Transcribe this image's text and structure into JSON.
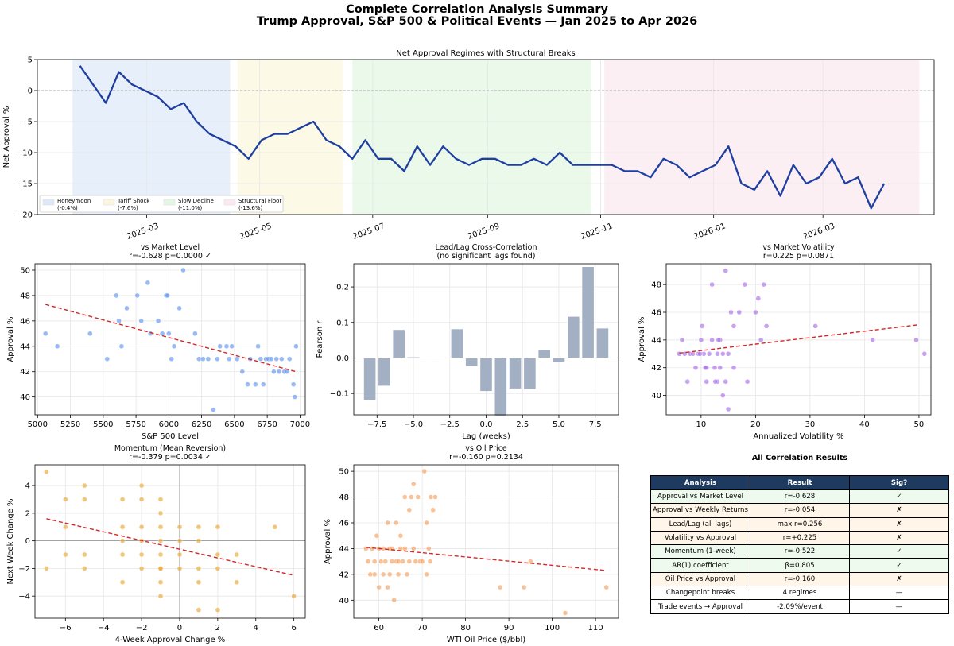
{
  "suptitle_line1": "Complete Correlation Analysis Summary",
  "suptitle_line2": "Trump Approval, S&P 500 & Political Events — Jan 2025 to Apr 2026",
  "chart_data": [
    {
      "type": "line",
      "title": "Net Approval Regimes with Structural Breaks",
      "ylabel": "Net Approval %",
      "xlabel": "",
      "xlim": [
        "2025-01-01",
        "2026-04-30"
      ],
      "ylim": [
        -20,
        5
      ],
      "yticks": [
        5,
        0,
        -5,
        -10,
        -15,
        -20
      ],
      "xticks": [
        "2025-03",
        "2025-05",
        "2025-07",
        "2025-09",
        "2025-11",
        "2026-01",
        "2026-03"
      ],
      "grid": true,
      "reference_line_y": 0,
      "regimes": [
        {
          "label": "Honeymoon",
          "mean_label": "(-0.4%)",
          "start": "2025-01-20",
          "end": "2025-04-15",
          "color": "#dde8fa"
        },
        {
          "label": "Tariff Shock",
          "mean_label": "(-7.6%)",
          "start": "2025-04-19",
          "end": "2025-06-15",
          "color": "#fbf6dd"
        },
        {
          "label": "Slow Decline",
          "mean_label": "(-11.0%)",
          "start": "2025-06-20",
          "end": "2025-10-27",
          "color": "#e3f7e3"
        },
        {
          "label": "Structural Floor",
          "mean_label": "(-13.6%)",
          "start": "2025-11-03",
          "end": "2026-04-22",
          "color": "#fbe8f0"
        }
      ],
      "legend_position": "lower-left",
      "series": [
        {
          "color": "#1f3fa0",
          "x": [
            "2025-01-24",
            "2025-01-31",
            "2025-02-07",
            "2025-02-14",
            "2025-02-21",
            "2025-02-28",
            "2025-03-07",
            "2025-03-14",
            "2025-03-21",
            "2025-03-28",
            "2025-04-04",
            "2025-04-11",
            "2025-04-18",
            "2025-04-25",
            "2025-05-02",
            "2025-05-09",
            "2025-05-16",
            "2025-05-23",
            "2025-05-30",
            "2025-06-06",
            "2025-06-13",
            "2025-06-20",
            "2025-06-27",
            "2025-07-04",
            "2025-07-11",
            "2025-07-18",
            "2025-07-25",
            "2025-08-01",
            "2025-08-08",
            "2025-08-15",
            "2025-08-22",
            "2025-08-29",
            "2025-09-05",
            "2025-09-12",
            "2025-09-19",
            "2025-09-26",
            "2025-10-03",
            "2025-10-10",
            "2025-10-17",
            "2025-10-24",
            "2025-10-31",
            "2025-11-07",
            "2025-11-14",
            "2025-11-21",
            "2025-11-28",
            "2025-12-05",
            "2025-12-12",
            "2025-12-19",
            "2025-12-26",
            "2026-01-02",
            "2026-01-09",
            "2026-01-16",
            "2026-01-23",
            "2026-01-30",
            "2026-02-06",
            "2026-02-13",
            "2026-02-20",
            "2026-02-27",
            "2026-03-06",
            "2026-03-13",
            "2026-03-20",
            "2026-03-27",
            "2026-04-03",
            "2026-04-10",
            "2026-04-17"
          ],
          "y": [
            4,
            1,
            -2,
            3,
            1,
            0,
            -1,
            -3,
            -2,
            -5,
            -7,
            -8,
            -9,
            -11,
            -8,
            -7,
            -7,
            -6,
            -5,
            -8,
            -9,
            -11,
            -8,
            -11,
            -11,
            -13,
            -9,
            -12,
            -9,
            -11,
            -12,
            -11,
            -11,
            -12,
            -12,
            -11,
            -12,
            -10,
            -12,
            -12,
            -12,
            -12,
            -13,
            -13,
            -14,
            -11,
            -12,
            -14,
            -13,
            -12,
            -9,
            -15,
            -16,
            -13,
            -17,
            -12,
            -15,
            -14,
            -11,
            -15,
            -14,
            -19,
            -15,
            null,
            null
          ]
        }
      ]
    },
    {
      "type": "scatter",
      "title": "vs Market Level",
      "subtitle": "r=-0.628 p=0.0000 ✓",
      "xlabel": "S&P 500 Level",
      "ylabel": "Approval %",
      "xlim": [
        4980,
        7040
      ],
      "ylim": [
        38.6,
        50.5
      ],
      "xticks": [
        5000,
        5250,
        5500,
        5750,
        6000,
        6250,
        6500,
        6750,
        7000
      ],
      "yticks": [
        40,
        42,
        44,
        46,
        48,
        50
      ],
      "color": "#6495ed",
      "x": [
        5060,
        5150,
        5400,
        5530,
        5600,
        5620,
        5640,
        5680,
        5760,
        5790,
        5840,
        5860,
        5920,
        5950,
        5980,
        5990,
        6000,
        6020,
        6040,
        6080,
        6110,
        6200,
        6230,
        6260,
        6300,
        6340,
        6370,
        6390,
        6440,
        6460,
        6480,
        6520,
        6560,
        6600,
        6620,
        6660,
        6680,
        6700,
        6720,
        6740,
        6760,
        6780,
        6800,
        6820,
        6840,
        6860,
        6880,
        6900,
        6920,
        6950,
        6960,
        6970
      ],
      "y": [
        45,
        44,
        45,
        43,
        48,
        46,
        44,
        47,
        48,
        46,
        49,
        45,
        46,
        45,
        48,
        48,
        45,
        43,
        44,
        47,
        50,
        45,
        43,
        43,
        43,
        39,
        43,
        44,
        44,
        43,
        44,
        43,
        42,
        41,
        43,
        41,
        44,
        43,
        41,
        43,
        43,
        43,
        42,
        43,
        42,
        43,
        42,
        42,
        43,
        41,
        40,
        44
      ],
      "trend": {
        "x": [
          5060,
          6970
        ],
        "y": [
          47.3,
          42.0
        ],
        "color": "#d62728"
      }
    },
    {
      "type": "bar",
      "title": "Lead/Lag Cross-Correlation",
      "subtitle": "(no significant lags found)",
      "xlabel": "Lag (weeks)",
      "ylabel": "Pearson r",
      "xlim": [
        -9.1,
        9.1
      ],
      "ylim": [
        -0.16,
        0.265
      ],
      "xticks": [
        -7.5,
        -5.0,
        -2.5,
        0.0,
        2.5,
        5.0,
        7.5
      ],
      "yticks": [
        0.2,
        0.1,
        0.0,
        -0.1
      ],
      "color": "#a3afc2",
      "lags": [
        -8,
        -7,
        -6,
        -5,
        -4,
        -3,
        -2,
        -1,
        0,
        1,
        2,
        3,
        4,
        5,
        6,
        7,
        8
      ],
      "values": [
        -0.118,
        -0.078,
        0.079,
        0.002,
        0.001,
        0.001,
        0.081,
        -0.023,
        -0.093,
        -0.162,
        -0.086,
        -0.088,
        0.023,
        -0.012,
        0.116,
        0.256,
        0.083
      ]
    },
    {
      "type": "scatter",
      "title": "vs Market Volatility",
      "subtitle": "r=0.225 p=0.0871",
      "xlabel": "Annualized Volatility %",
      "ylabel": "Approval %",
      "xlim": [
        3.6,
        52.2
      ],
      "ylim": [
        38.6,
        49.5
      ],
      "xticks": [
        10,
        20,
        30,
        40,
        50
      ],
      "yticks": [
        40,
        42,
        44,
        46,
        48
      ],
      "color": "#a970e6",
      "x": [
        6,
        6.5,
        7,
        7.5,
        8,
        8.5,
        9,
        9.5,
        10,
        10.2,
        10.5,
        11,
        11,
        11.5,
        12,
        12,
        12.5,
        13,
        13,
        13.5,
        13.5,
        14,
        14,
        14.5,
        14.5,
        15,
        15,
        15.5,
        16,
        16,
        17,
        18,
        18.5,
        20,
        20.5,
        21,
        21.5,
        22,
        31,
        41.5,
        49.5,
        51,
        9.8,
        10.8,
        12.6,
        13.2
      ],
      "y": [
        43,
        44,
        43,
        41,
        43,
        43,
        42,
        43,
        44,
        45,
        43,
        41,
        42,
        43,
        48,
        44,
        42,
        43,
        41,
        44,
        42,
        40,
        43,
        41,
        49,
        39,
        43,
        46,
        45,
        42,
        46,
        48,
        41,
        46,
        47,
        44,
        48,
        45,
        45,
        44,
        44,
        43,
        43,
        42,
        41,
        44
      ],
      "trend": {
        "x": [
          6,
          50
        ],
        "y": [
          43.05,
          45.1
        ],
        "color": "#d62728"
      }
    },
    {
      "type": "scatter",
      "title": "Momentum (Mean Reversion)",
      "subtitle": "r=-0.379 p=0.0034 ✓",
      "xlabel": "4-Week Approval Change %",
      "ylabel": "Next Week Change %",
      "xlim": [
        -7.6,
        6.6
      ],
      "ylim": [
        -5.6,
        5.5
      ],
      "xticks": [
        -6,
        -4,
        -2,
        0,
        2,
        4,
        6
      ],
      "yticks": [
        4,
        2,
        0,
        -2,
        -4
      ],
      "color": "#e8a838",
      "reference_lines": {
        "x": 0,
        "y": 0
      },
      "x": [
        -7,
        -7,
        -6,
        -6,
        -6,
        -5,
        -5,
        -5,
        -5,
        -3,
        -3,
        -3,
        -3,
        -3,
        -2,
        -2,
        -2,
        -2,
        -2,
        -2,
        -1,
        -1,
        -1,
        -1,
        -1,
        -1,
        -1,
        -1,
        -1,
        0,
        0,
        0,
        0,
        1,
        1,
        1,
        1,
        1,
        2,
        2,
        2,
        2,
        3,
        3,
        5,
        6
      ],
      "y": [
        5,
        -2,
        3,
        1,
        -1,
        4,
        3,
        -1,
        -2,
        3,
        1,
        0,
        -1,
        -3,
        4,
        3,
        1,
        0,
        -1,
        -2,
        3,
        2,
        1,
        0,
        -1,
        -2,
        -3,
        -4,
        -2,
        1,
        0,
        -1,
        -2,
        1,
        0,
        -2,
        -3,
        -5,
        1,
        -1,
        -2,
        -5,
        -1,
        -3,
        1,
        -4
      ],
      "trend": {
        "x": [
          -7,
          6
        ],
        "y": [
          1.6,
          -2.5
        ],
        "color": "#d62728"
      }
    },
    {
      "type": "scatter",
      "title": "vs Oil Price",
      "subtitle": "r=-0.160 p=0.2134",
      "xlabel": "WTI Oil Price ($/bbl)",
      "ylabel": "Approval %",
      "xlim": [
        54.2,
        115.3
      ],
      "ylim": [
        38.6,
        50.5
      ],
      "xticks": [
        60,
        70,
        80,
        90,
        100,
        110
      ],
      "yticks": [
        40,
        42,
        44,
        46,
        48,
        50
      ],
      "color": "#f4a261",
      "x": [
        57,
        57.5,
        58,
        58.5,
        59,
        59,
        59.5,
        60,
        60,
        60.5,
        61,
        61,
        61.5,
        62,
        62,
        62.5,
        63,
        63,
        63.5,
        64,
        64,
        64.5,
        65,
        65,
        65.5,
        66,
        66,
        66.5,
        67,
        67,
        67.5,
        68,
        68,
        68.5,
        69,
        69.5,
        70,
        70.5,
        71,
        71,
        71.5,
        72,
        72.5,
        73,
        88,
        93.5,
        95,
        103,
        112.5,
        62.5,
        64.5,
        71.8
      ],
      "y": [
        44,
        43,
        42,
        44,
        43,
        42,
        45,
        44,
        41,
        43,
        42,
        44,
        43,
        46,
        41,
        42,
        43,
        44,
        40,
        46,
        43,
        42,
        44,
        45,
        43,
        48,
        44,
        42,
        47,
        43,
        48,
        44,
        49,
        43,
        48,
        43,
        43,
        50,
        46,
        42,
        44,
        48,
        47,
        48,
        41,
        41,
        43,
        39,
        41,
        44,
        43,
        43
      ],
      "trend": {
        "x": [
          57,
          112.5
        ],
        "y": [
          44.1,
          42.3
        ],
        "color": "#d62728"
      }
    }
  ],
  "results_table": {
    "title": "All Correlation Results",
    "headers": [
      "Analysis",
      "Result",
      "Sig?"
    ],
    "rows": [
      {
        "analysis": "Approval vs Market Level",
        "result": "r=-0.628",
        "sig": "✓",
        "tint": "#eefaee"
      },
      {
        "analysis": "Approval vs Weekly Returns",
        "result": "r=-0.054",
        "sig": "✗",
        "tint": "#fff6e9"
      },
      {
        "analysis": "Lead/Lag (all lags)",
        "result": "max r=0.256",
        "sig": "✗",
        "tint": "#fff6e9"
      },
      {
        "analysis": "Volatility vs Approval",
        "result": "r=+0.225",
        "sig": "✗",
        "tint": "#fff6e9"
      },
      {
        "analysis": "Momentum (1-week)",
        "result": "r=-0.522",
        "sig": "✓",
        "tint": "#eefaee"
      },
      {
        "analysis": "AR(1) coefficient",
        "result": "β=0.805",
        "sig": "✓",
        "tint": "#eefaee"
      },
      {
        "analysis": "Oil Price vs Approval",
        "result": "r=-0.160",
        "sig": "✗",
        "tint": "#fff6e9"
      },
      {
        "analysis": "Changepoint breaks",
        "result": "4 regimes",
        "sig": "—",
        "tint": "#ffffff"
      },
      {
        "analysis": "Trade events → Approval",
        "result": "-2.09%/event",
        "sig": "—",
        "tint": "#ffffff"
      }
    ]
  }
}
